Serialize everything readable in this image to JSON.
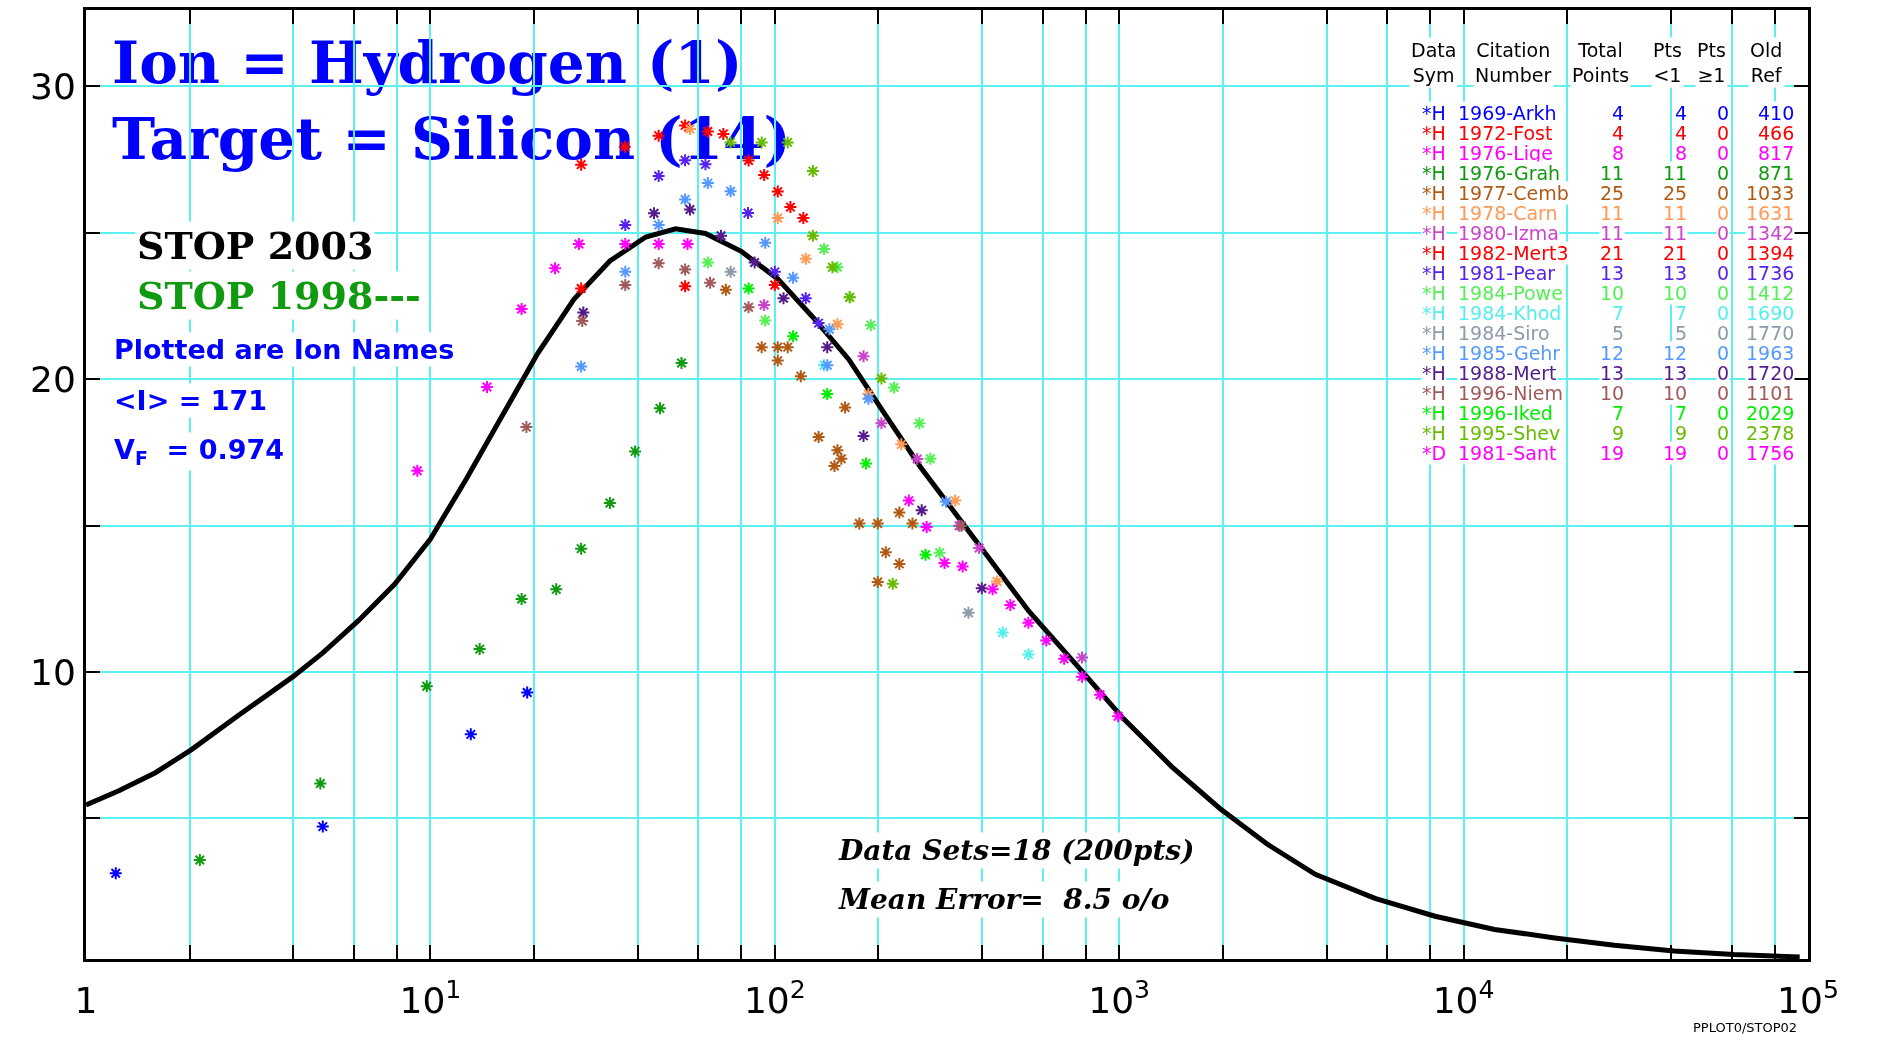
{
  "chart_data": {
    "type": "scatter",
    "title": "Ion = Hydrogen (1)",
    "subtitle": "Target = Silicon (14)",
    "log": "x",
    "grid": true,
    "marker": "cross",
    "xlim": [
      1,
      100000
    ],
    "ylim": [
      0.2,
      32.6
    ],
    "xticks": [
      1,
      {
        "value": 2,
        "label": null
      },
      {
        "value": 4,
        "label": null
      },
      {
        "value": 6,
        "label": null
      },
      {
        "value": 8,
        "label": null
      },
      {
        "value": 10,
        "label": "10$^{1}$"
      },
      {
        "value": 20,
        "label": null
      },
      {
        "value": 40,
        "label": null
      },
      {
        "value": 60,
        "label": null
      },
      {
        "value": 80,
        "label": null
      },
      {
        "value": 100,
        "label": "10$^{2}$"
      },
      {
        "value": 200,
        "label": null
      },
      {
        "value": 400,
        "label": null
      },
      {
        "value": 600,
        "label": null
      },
      {
        "value": 800,
        "label": null
      },
      {
        "value": 1000,
        "label": "10$^{3}$"
      },
      {
        "value": 2000,
        "label": null
      },
      {
        "value": 4000,
        "label": null
      },
      {
        "value": 6000,
        "label": null
      },
      {
        "value": 8000,
        "label": null
      },
      {
        "value": 10000,
        "label": "10$^{4}$"
      },
      {
        "value": 20000,
        "label": null
      },
      {
        "value": 40000,
        "label": null
      },
      {
        "value": 60000,
        "label": null
      },
      {
        "value": 80000,
        "label": null
      },
      {
        "value": 100000,
        "label": "10$^{5}$"
      }
    ],
    "yticks": [
      {
        "value": 5,
        "label": null
      },
      10,
      {
        "value": 15,
        "label": null
      },
      20,
      {
        "value": 25,
        "label": null
      },
      30
    ],
    "annotations": [
      "STOP 2003",
      "Data\nSym",
      "Citation\nNumber",
      "Total\nPoints",
      "Pts\n<1",
      "Pts\n≥1",
      "Old\nRef",
      "STOP 1998---",
      "Plotted are Ion Names",
      "<I> = 171",
      "V$_{F}$  = 0.974",
      "Data Sets=18 (200pts)",
      "Mean Error=  8.5 o/o",
      "PPLOT0/STOP02"
    ],
    "series": [
      {
        "type": "line",
        "marker": "none",
        "color": "#000000",
        "x": [
          1,
          1.25,
          1.59,
          2.02,
          2.78,
          3.99,
          4.87,
          6.19,
          7.87,
          10,
          12.7,
          16.1,
          20.5,
          26.1,
          33.2,
          42.2,
          51.5,
          62.9,
          79.9,
          102,
          129,
          164,
          208,
          265,
          337,
          429,
          545,
          750,
          1030,
          1420,
          1960,
          2700,
          3710,
          5530,
          8260,
          12300,
          18400,
          27400,
          40800,
          60900,
          94600
        ],
        "values": [
          5.46,
          5.95,
          6.56,
          7.34,
          8.53,
          9.84,
          10.65,
          11.76,
          12.99,
          14.54,
          16.58,
          18.71,
          20.88,
          22.72,
          24.03,
          24.85,
          25.13,
          24.97,
          24.36,
          23.42,
          22.11,
          20.67,
          18.83,
          16.99,
          15.36,
          13.72,
          12.09,
          10.25,
          8.4,
          6.77,
          5.34,
          4.11,
          3.09,
          2.27,
          1.66,
          1.21,
          0.92,
          0.67,
          0.47,
          0.35,
          0.27
        ]
      },
      {
        "name": "*H 1969-Arkh 4 4 0 410",
        "color": "#0000ff",
        "x": [
          1.22,
          4.87,
          13.1,
          19.1
        ],
        "values": [
          3.13,
          4.72,
          7.87,
          9.3
        ]
      },
      {
        "name": "*H 1972-Fost 4 4 0 466",
        "color": "#ff0000",
        "x": [
          27.4,
          36.7,
          46,
          54.9
        ],
        "values": [
          27.32,
          27.93,
          28.31,
          28.66
        ]
      },
      {
        "name": "*H 1976-Lige 8 8 0 817",
        "color": "#ff00ff",
        "x": [
          9.16,
          14.6,
          18.4,
          23,
          27,
          36.8,
          46,
          55.8
        ],
        "values": [
          16.87,
          19.73,
          22.39,
          23.78,
          24.61,
          24.61,
          24.61,
          24.61
        ]
      },
      {
        "name": "*H 1976-Grah 11 11 0 871",
        "color": "#109a10",
        "x": [
          2.14,
          4.79,
          9.76,
          13.9,
          18.4,
          23.2,
          27.4,
          33.2,
          39.3,
          46.4,
          53.6
        ],
        "values": [
          3.58,
          6.19,
          9.51,
          10.78,
          12.49,
          12.82,
          14.21,
          15.77,
          17.53,
          19,
          20.55
        ]
      },
      {
        "name": "*H 1977-Cemb 25 25 0 1033",
        "color": "#b05a14",
        "x": [
          72.1,
          91.6,
          102,
          109,
          102,
          119,
          160,
          134,
          152,
          156,
          149,
          176,
          199,
          230,
          251,
          210,
          230,
          199
        ],
        "values": [
          23.05,
          21.09,
          21.09,
          21.09,
          20.63,
          20.1,
          19.03,
          18.02,
          17.57,
          17.28,
          17.03,
          15.07,
          15.07,
          15.44,
          15.07,
          14.09,
          13.69,
          13.07
        ]
      },
      {
        "name": "*H 1978-Carn 11 11 0 1631",
        "color": "#ff9955",
        "x": [
          56.7,
          102,
          123,
          152,
          187,
          233,
          334,
          442
        ],
        "values": [
          28.54,
          25.5,
          24.11,
          21.87,
          19.49,
          17.77,
          15.85,
          13.09
        ]
      },
      {
        "name": "*H 1980-Izma 11 11 0 1342",
        "color": "#cc44cc",
        "x": [
          93.1,
          181,
          204,
          259,
          343,
          392,
          780
        ],
        "values": [
          22.53,
          20.78,
          18.49,
          17.27,
          14.99,
          14.23,
          10.49
        ]
      },
      {
        "name": "*H 1982-Mert3 21 21 0 1394",
        "color": "#ff0000",
        "x": [
          27.4,
          54.9,
          63.9,
          70.9,
          83.9,
          93.1,
          100,
          102,
          111,
          121
        ],
        "values": [
          23.09,
          23.17,
          28.45,
          28.37,
          27.46,
          26.97,
          23.21,
          26.4,
          25.87,
          25.5
        ]
      },
      {
        "name": "*H 1981-Pear 13 13 0 1736",
        "color": "#5522ee",
        "x": [
          36.8,
          46,
          54.9,
          62.9,
          83.6,
          100,
          123,
          134
        ],
        "values": [
          25.26,
          26.93,
          27.47,
          27.33,
          25.67,
          23.66,
          22.76,
          21.91
        ]
      },
      {
        "name": "*H 1984-Powe 10 10 0 1412",
        "color": "#55ee55",
        "x": [
          63.9,
          93.8,
          139,
          152,
          165,
          190,
          222,
          263,
          283,
          301
        ],
        "values": [
          23.98,
          22,
          24.44,
          23.82,
          22.79,
          21.84,
          19.71,
          18.49,
          17.28,
          14.07
        ]
      },
      {
        "name": "*H 1984-Khod 7 7 0 1690",
        "color": "#55eeee",
        "x": [
          139,
          459,
          545
        ],
        "values": [
          20.47,
          11.35,
          10.6
        ]
      },
      {
        "name": "*H 1984-Siro 5 5 0 1770",
        "color": "#8c9aaa",
        "x": [
          74.4,
          365
        ],
        "values": [
          23.66,
          12.02
        ]
      },
      {
        "name": "*H 1985-Gehr 12 12 0 1963",
        "color": "#5599ff",
        "x": [
          27.4,
          36.8,
          46,
          54.9,
          63.9,
          74.4,
          93.8,
          113,
          142,
          144,
          187,
          314
        ],
        "values": [
          20.43,
          23.66,
          25.26,
          26.13,
          26.69,
          26.41,
          24.65,
          23.46,
          20.47,
          21.7,
          19.33,
          15.81
        ]
      },
      {
        "name": "*H 1988-Mert 13 13 0 1720",
        "color": "#551a8b",
        "x": [
          27.8,
          44.6,
          56.7,
          69.8,
          87.4,
          106,
          142,
          181,
          267,
          399
        ],
        "values": [
          22.27,
          25.66,
          25.79,
          24.89,
          23.98,
          22.76,
          21.09,
          18.06,
          15.52,
          12.86
        ]
      },
      {
        "name": "*H 1996-Niem 10 10 0 1101",
        "color": "#a05a5a",
        "x": [
          19,
          27.6,
          36.8,
          46,
          54.9,
          64.9,
          83.9,
          348
        ],
        "values": [
          18.36,
          21.98,
          23.21,
          23.95,
          23.74,
          23.29,
          22.45,
          14.99
        ]
      },
      {
        "name": "*H 1996-Iked 7 7 0 2029",
        "color": "#00ee00",
        "x": [
          83.9,
          113,
          142,
          184,
          274
        ],
        "values": [
          23.09,
          21.46,
          19.49,
          17.12,
          14
        ]
      },
      {
        "name": "*H 1995-Shev 9 9 0 2378",
        "color": "#66bb00",
        "x": [
          74.4,
          91.6,
          109,
          129,
          129,
          147,
          165,
          204,
          220
        ],
        "values": [
          28.08,
          28.08,
          28.08,
          27.1,
          24.89,
          23.82,
          22.79,
          20.02,
          13.01
        ]
      },
      {
        "name": "*D 1981-Sant 19 19 0 1756",
        "color": "#ff00ff",
        "x": [
          245,
          276,
          311,
          351,
          429,
          483,
          545,
          614,
          692,
          780,
          880,
          993
        ],
        "values": [
          15.85,
          14.95,
          13.72,
          13.6,
          12.82,
          12.29,
          11.68,
          11.07,
          10.45,
          9.84,
          9.22,
          8.49
        ]
      }
    ]
  }
}
